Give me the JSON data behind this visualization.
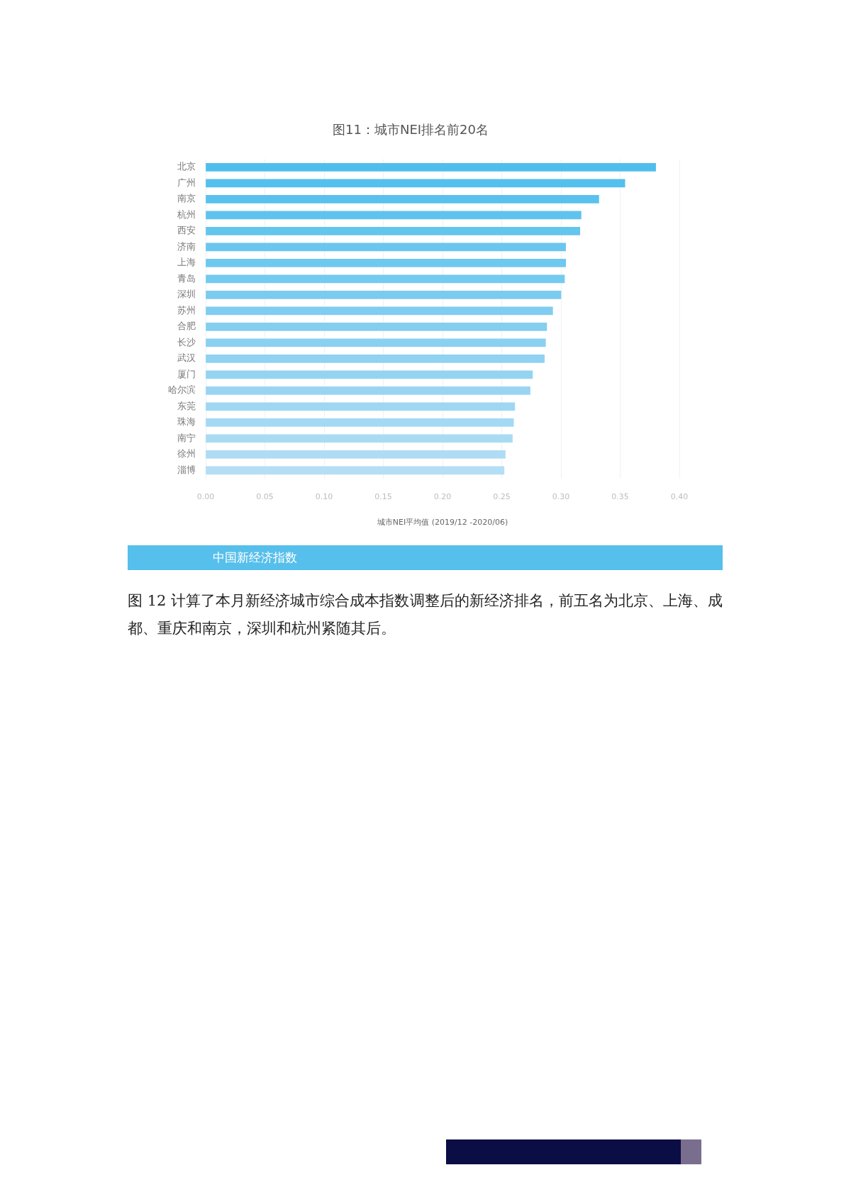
{
  "chart_data": {
    "type": "bar",
    "orientation": "horizontal",
    "title": "图11：城市NEI排名前20名",
    "xlabel": "城市NEI平均值 (2019/12 -2020/06)",
    "categories": [
      "北京",
      "广州",
      "南京",
      "杭州",
      "西安",
      "济南",
      "上海",
      "青岛",
      "深圳",
      "苏州",
      "合肥",
      "长沙",
      "武汉",
      "厦门",
      "哈尔滨",
      "东莞",
      "珠海",
      "南宁",
      "徐州",
      "淄博"
    ],
    "values": [
      0.38,
      0.354,
      0.332,
      0.317,
      0.316,
      0.304,
      0.304,
      0.303,
      0.3,
      0.293,
      0.288,
      0.287,
      0.286,
      0.276,
      0.274,
      0.261,
      0.26,
      0.259,
      0.253,
      0.252
    ],
    "colors": [
      "#4fbeec",
      "#54c0ec",
      "#5ac1ed",
      "#5fc3ed",
      "#64c5ed",
      "#6ac6ee",
      "#6fc8ee",
      "#74caef",
      "#7acbef",
      "#7fcdf0",
      "#84cff0",
      "#8ad0f1",
      "#8fd2f1",
      "#94d4f1",
      "#99d5f2",
      "#9fd7f2",
      "#a4d9f3",
      "#a9dbf3",
      "#afdcf4",
      "#b4def4"
    ],
    "xlim": [
      0,
      0.4
    ],
    "xticks": [
      {
        "value": 0,
        "label": "0.00"
      },
      0.05,
      {
        "value": 0.1,
        "label": "0.10"
      },
      0.15,
      {
        "value": 0.2,
        "label": "0.20"
      },
      0.25,
      {
        "value": 0.3,
        "label": "0.30"
      },
      0.35,
      {
        "value": 0.4,
        "label": "0.40"
      }
    ],
    "grid": "x",
    "annotations": [
      "中国新经济指数",
      "图 12 计算了本月新经济城市综合成本指数调整后的新经济排名，前五名为北京、上海、成都、重庆和南京，深圳和杭州紧随其后。"
    ]
  }
}
